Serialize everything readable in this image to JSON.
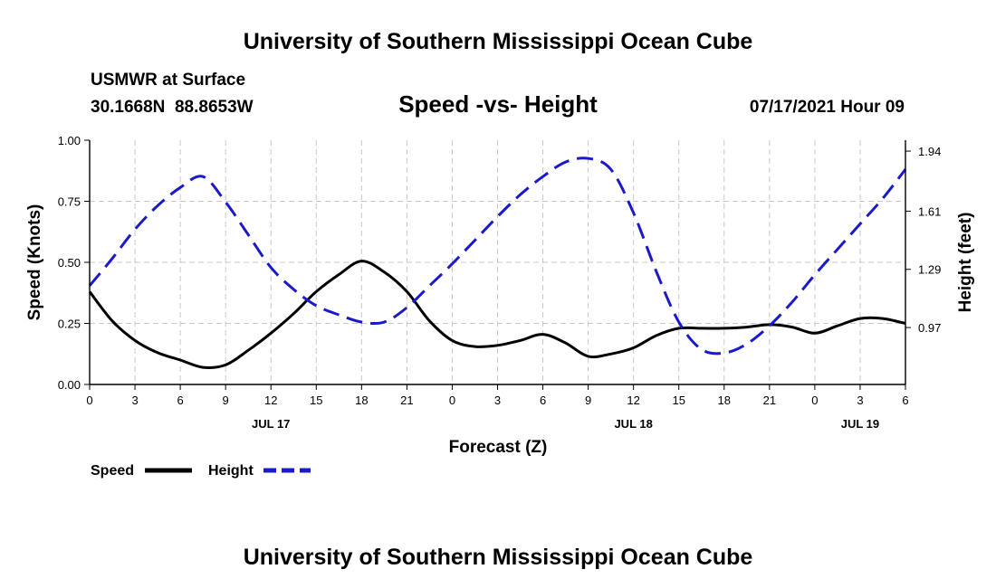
{
  "page": {
    "title_top": "University of Southern Mississippi Ocean Cube",
    "title_bottom": "University of Southern Mississippi Ocean Cube",
    "station_name": "USMWR at Surface",
    "station_coords": "30.1668N  88.8653W",
    "chart_title": "Speed -vs- Height",
    "timestamp": "07/17/2021 Hour 09"
  },
  "chart_data": {
    "type": "line",
    "title": "Speed -vs- Height",
    "xlabel": "Forecast (Z)",
    "ylabel": "Speed (Knots)",
    "y2label": "Height (feet)",
    "x_ticks": [
      "0",
      "3",
      "6",
      "9",
      "12",
      "15",
      "18",
      "21",
      "0",
      "3",
      "6",
      "9",
      "12",
      "15",
      "18",
      "21",
      "0",
      "3",
      "6"
    ],
    "x_range": [
      0,
      54
    ],
    "day_labels": [
      {
        "label": "JUL 17",
        "hour": 12
      },
      {
        "label": "JUL 18",
        "hour": 36
      },
      {
        "label": "JUL 19",
        "hour": 51
      }
    ],
    "ylim": [
      0,
      1.0
    ],
    "y_ticks": [
      "0.00",
      "0.25",
      "0.50",
      "0.75",
      "1.00"
    ],
    "y_tick_values": [
      0,
      0.25,
      0.5,
      0.75,
      1.0
    ],
    "y2lim": [
      0.657,
      2.0
    ],
    "y2_ticks": [
      "0.97",
      "1.29",
      "1.61",
      "1.94"
    ],
    "y2_tick_values": [
      0.97,
      1.29,
      1.61,
      1.94
    ],
    "grid": true,
    "legend_position": "bottom-left",
    "legend": [
      "Speed",
      "Height"
    ],
    "colors": {
      "speed": "#000000",
      "height": "#1a1acc"
    },
    "series": [
      {
        "name": "Speed",
        "axis": "left",
        "style": "solid",
        "x": [
          0,
          1.5,
          3,
          4.5,
          6,
          7.5,
          9,
          10.5,
          12,
          13.5,
          15,
          16.5,
          18,
          19.5,
          21,
          22.5,
          24,
          25.5,
          27,
          28.5,
          30,
          31.5,
          33,
          34.5,
          36,
          37.5,
          39,
          40.5,
          42,
          43.5,
          45,
          46.5,
          48,
          49.5,
          51,
          52.5,
          54
        ],
        "values": [
          0.38,
          0.26,
          0.18,
          0.13,
          0.1,
          0.07,
          0.08,
          0.14,
          0.21,
          0.29,
          0.38,
          0.45,
          0.505,
          0.46,
          0.38,
          0.26,
          0.18,
          0.155,
          0.16,
          0.18,
          0.205,
          0.17,
          0.115,
          0.125,
          0.15,
          0.2,
          0.23,
          0.23,
          0.23,
          0.235,
          0.245,
          0.235,
          0.21,
          0.24,
          0.27,
          0.27,
          0.25
        ]
      },
      {
        "name": "Height",
        "axis": "right",
        "style": "dashed",
        "x": [
          0,
          1.5,
          3,
          4.5,
          6,
          7.5,
          9,
          10.5,
          12,
          13.5,
          15,
          16.5,
          18,
          19.5,
          21,
          22.5,
          24,
          25.5,
          27,
          28.5,
          30,
          31.5,
          33,
          34.5,
          36,
          37.5,
          39,
          40.5,
          42,
          43.5,
          45,
          46.5,
          48,
          49.5,
          51,
          52.5,
          54
        ],
        "values": [
          1.2,
          1.35,
          1.51,
          1.64,
          1.74,
          1.8,
          1.66,
          1.48,
          1.3,
          1.18,
          1.09,
          1.04,
          1.0,
          1.0,
          1.08,
          1.2,
          1.32,
          1.45,
          1.58,
          1.7,
          1.8,
          1.88,
          1.9,
          1.84,
          1.6,
          1.28,
          1.0,
          0.85,
          0.83,
          0.88,
          0.98,
          1.11,
          1.26,
          1.4,
          1.54,
          1.68,
          1.84
        ]
      }
    ]
  }
}
